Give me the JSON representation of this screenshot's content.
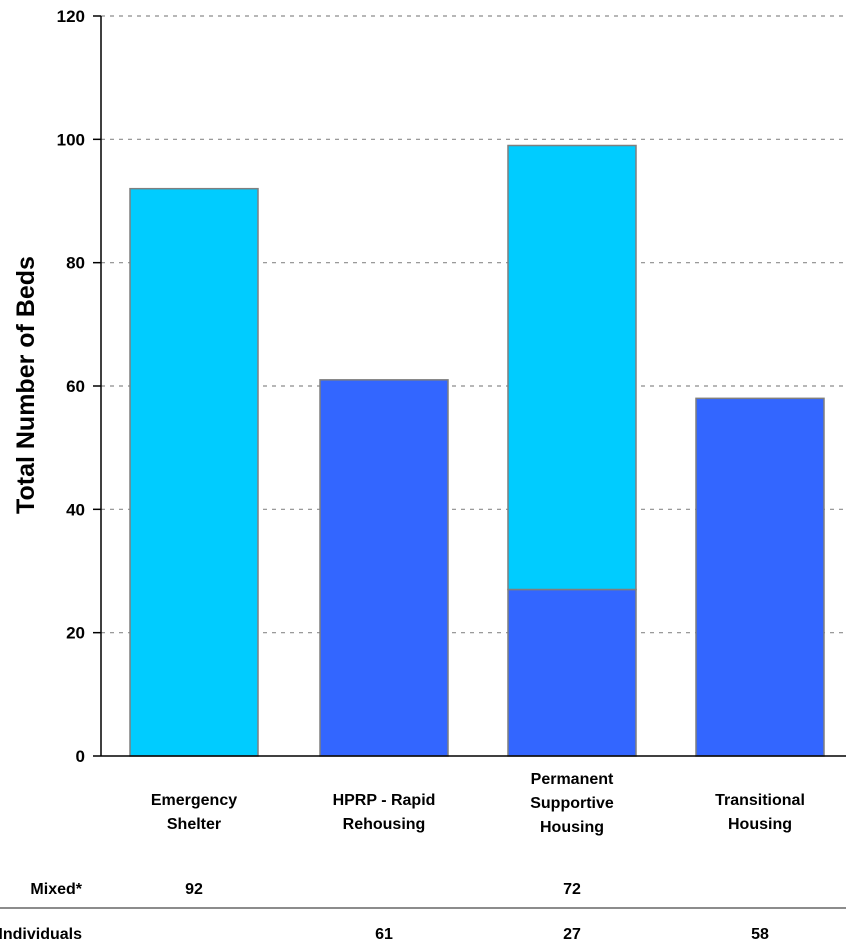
{
  "chart_data": {
    "type": "bar",
    "stacked": true,
    "title": "",
    "xlabel": "",
    "ylabel": "Total Number of Beds",
    "ylim": [
      0,
      120
    ],
    "yticks": [
      "0",
      "20",
      "40",
      "60",
      "80",
      "100",
      "120"
    ],
    "grid": true,
    "categories": [
      [
        "Emergency",
        "Shelter"
      ],
      [
        "HPRP - Rapid",
        "Rehousing"
      ],
      [
        "Permanent",
        "Supportive",
        "Housing"
      ],
      [
        "Transitional",
        "Housing"
      ]
    ],
    "series": [
      {
        "name": "Individuals",
        "color": "#3366ff",
        "values": [
          null,
          61,
          27,
          58
        ]
      },
      {
        "name": "Mixed*",
        "color": "#00ccff",
        "values": [
          92,
          null,
          72,
          null
        ]
      }
    ],
    "table": {
      "rows": [
        {
          "label": "Mixed*",
          "values": [
            "92",
            "",
            "72",
            ""
          ]
        },
        {
          "label": "Individuals",
          "values": [
            "",
            "61",
            "27",
            "58"
          ]
        }
      ]
    }
  }
}
